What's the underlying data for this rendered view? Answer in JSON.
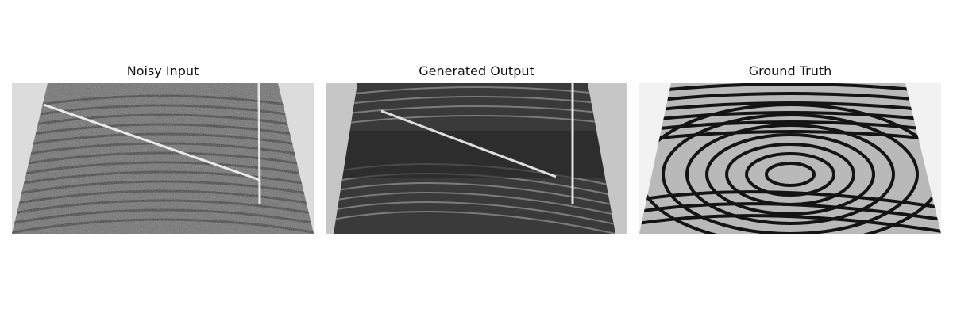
{
  "panels": [
    {
      "title": "Noisy Input",
      "image": "noisy-fingerprint-with-scratch-lines"
    },
    {
      "title": "Generated Output",
      "image": "denoised-fingerprint-with-scratch-lines"
    },
    {
      "title": "Ground Truth",
      "image": "clean-fingerprint"
    }
  ],
  "colors": {
    "background": "#ffffff",
    "title_text": "#111111",
    "noisy_bg": "#d9d9d9",
    "output_bg": "#c4c4c4",
    "truth_bg": "#efefef"
  }
}
